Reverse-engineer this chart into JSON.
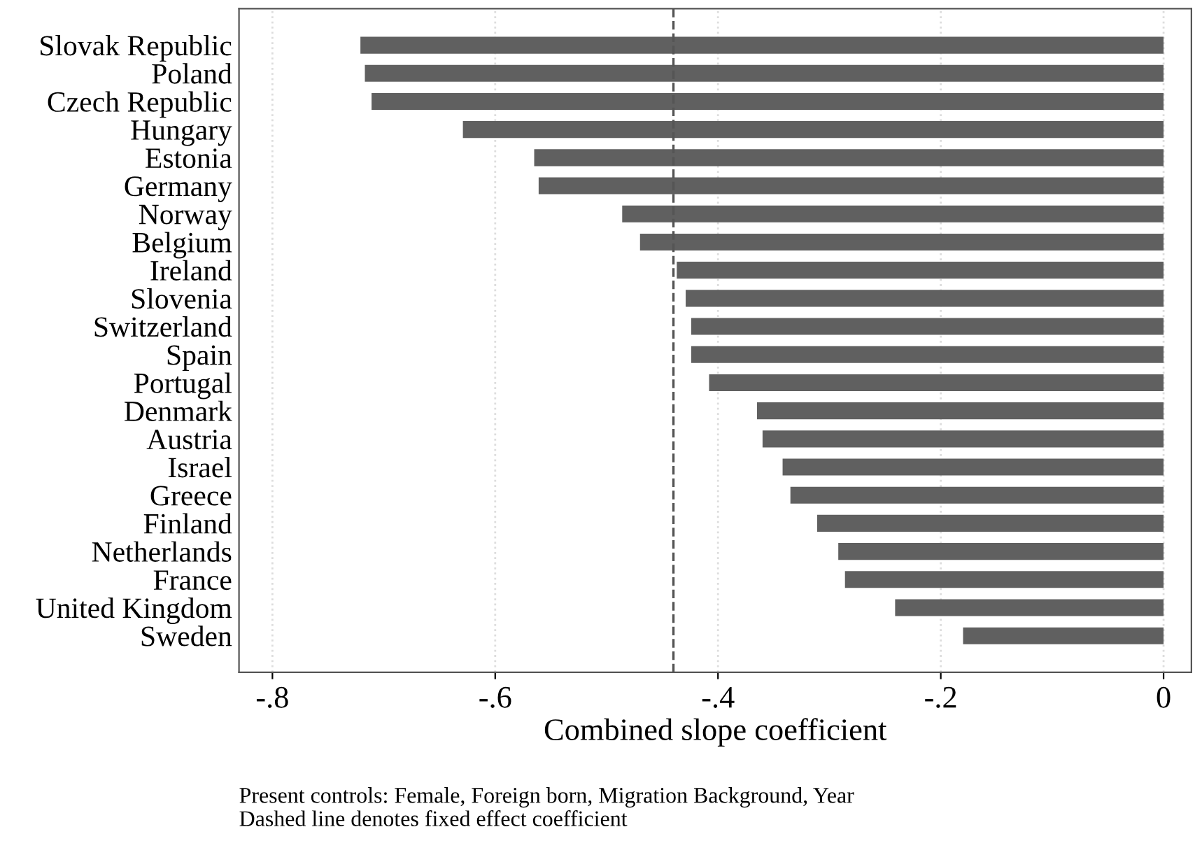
{
  "chart_data": {
    "type": "bar",
    "orientation": "horizontal",
    "categories": [
      "Slovak Republic",
      "Poland",
      "Czech Republic",
      "Hungary",
      "Estonia",
      "Germany",
      "Norway",
      "Belgium",
      "Ireland",
      "Slovenia",
      "Switzerland",
      "Spain",
      "Portugal",
      "Denmark",
      "Austria",
      "Israel",
      "Greece",
      "Finland",
      "Netherlands",
      "France",
      "United Kingdom",
      "Sweden"
    ],
    "values": [
      -0.721,
      -0.717,
      -0.711,
      -0.629,
      -0.565,
      -0.561,
      -0.486,
      -0.47,
      -0.437,
      -0.429,
      -0.424,
      -0.424,
      -0.408,
      -0.365,
      -0.36,
      -0.342,
      -0.335,
      -0.311,
      -0.292,
      -0.286,
      -0.241,
      -0.18
    ],
    "color": "#606060",
    "xlabel": "Combined slope coefficient",
    "xlim": [
      -0.83,
      0.025
    ],
    "xticks": [
      {
        "value": -0.8,
        "label": "-.8"
      },
      {
        "value": -0.6,
        "label": "-.6"
      },
      {
        "value": -0.4,
        "label": "-.4"
      },
      {
        "value": -0.2,
        "label": "-.2"
      },
      0
    ],
    "grid": "x",
    "ref_lines": [
      {
        "axis": "x",
        "value": -0.44,
        "color": "#555555",
        "line_style": "dashed"
      }
    ],
    "annotations": [
      "Present controls: Female, Foreign born, Migration Background, Year",
      "Dashed line denotes fixed effect coefficient"
    ]
  }
}
